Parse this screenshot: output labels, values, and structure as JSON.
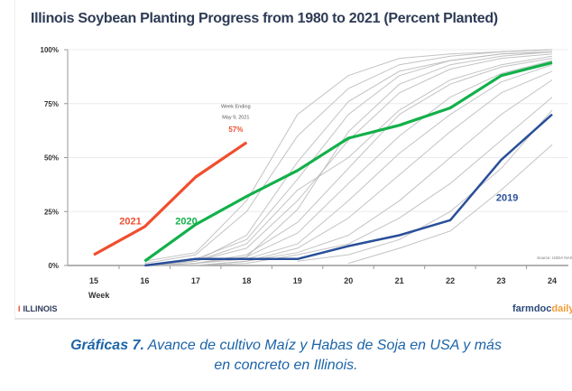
{
  "chart_data": {
    "type": "line",
    "title": "Illinois Soybean Planting Progress from 1980 to 2021 (Percent Planted)",
    "xlabel": "Week",
    "ylabel": "",
    "x": [
      15,
      16,
      17,
      18,
      19,
      20,
      21,
      22,
      23,
      24
    ],
    "xlim": [
      15,
      24
    ],
    "ylim": [
      0,
      100
    ],
    "y_ticks": [
      "0%",
      "25%",
      "50%",
      "75%",
      "100%"
    ],
    "x_ticks": [
      "15",
      "16",
      "17",
      "18",
      "19",
      "20",
      "21",
      "22",
      "23",
      "24"
    ],
    "grid": "horizontal",
    "series": [
      {
        "name": "2021",
        "color": "#f04e2e",
        "x": [
          15,
          16,
          17,
          18
        ],
        "values": [
          5,
          18,
          41,
          57
        ]
      },
      {
        "name": "2020",
        "color": "#12b04a",
        "x": [
          16,
          17,
          18,
          19,
          20,
          21,
          22,
          23,
          24
        ],
        "values": [
          2,
          19,
          32,
          44,
          59,
          65,
          73,
          88,
          94
        ]
      },
      {
        "name": "2019",
        "color": "#2a4f9a",
        "x": [
          16,
          17,
          18,
          19,
          20,
          21,
          22,
          23,
          24
        ],
        "values": [
          0,
          3,
          3,
          3,
          9,
          14,
          21,
          49,
          70
        ]
      }
    ],
    "other_years_color": "#b9b9b9",
    "other_years": [
      [
        [
          16,
          2
        ],
        [
          17,
          6
        ],
        [
          18,
          30
        ],
        [
          19,
          70
        ],
        [
          20,
          88
        ],
        [
          21,
          96
        ],
        [
          22,
          98
        ],
        [
          23,
          99
        ],
        [
          24,
          100
        ]
      ],
      [
        [
          16,
          1
        ],
        [
          17,
          5
        ],
        [
          18,
          25
        ],
        [
          19,
          60
        ],
        [
          20,
          82
        ],
        [
          21,
          93
        ],
        [
          22,
          97
        ],
        [
          23,
          99
        ],
        [
          24,
          100
        ]
      ],
      [
        [
          16,
          0
        ],
        [
          17,
          3
        ],
        [
          18,
          12
        ],
        [
          19,
          40
        ],
        [
          20,
          70
        ],
        [
          21,
          88
        ],
        [
          22,
          95
        ],
        [
          23,
          98
        ],
        [
          24,
          99
        ]
      ],
      [
        [
          16,
          0
        ],
        [
          17,
          2
        ],
        [
          18,
          8
        ],
        [
          19,
          30
        ],
        [
          20,
          58
        ],
        [
          21,
          80
        ],
        [
          22,
          91
        ],
        [
          23,
          96
        ],
        [
          24,
          98
        ]
      ],
      [
        [
          16,
          0
        ],
        [
          17,
          2
        ],
        [
          18,
          10
        ],
        [
          19,
          35
        ],
        [
          20,
          50
        ],
        [
          21,
          72
        ],
        [
          22,
          86
        ],
        [
          23,
          93
        ],
        [
          24,
          97
        ]
      ],
      [
        [
          16,
          0
        ],
        [
          17,
          1
        ],
        [
          18,
          5
        ],
        [
          19,
          20
        ],
        [
          20,
          45
        ],
        [
          21,
          70
        ],
        [
          22,
          84
        ],
        [
          23,
          92
        ],
        [
          24,
          96
        ]
      ],
      [
        [
          16,
          0
        ],
        [
          17,
          1
        ],
        [
          18,
          4
        ],
        [
          19,
          15
        ],
        [
          20,
          38
        ],
        [
          21,
          60
        ],
        [
          22,
          78
        ],
        [
          23,
          89
        ],
        [
          24,
          95
        ]
      ],
      [
        [
          16,
          0
        ],
        [
          17,
          1
        ],
        [
          18,
          3
        ],
        [
          19,
          10
        ],
        [
          20,
          30
        ],
        [
          21,
          52
        ],
        [
          22,
          70
        ],
        [
          23,
          85
        ],
        [
          24,
          93
        ]
      ],
      [
        [
          16,
          0
        ],
        [
          17,
          0
        ],
        [
          18,
          2
        ],
        [
          19,
          8
        ],
        [
          20,
          22
        ],
        [
          21,
          42
        ],
        [
          22,
          62
        ],
        [
          23,
          80
        ],
        [
          24,
          90
        ]
      ],
      [
        [
          16,
          0
        ],
        [
          17,
          0
        ],
        [
          18,
          2
        ],
        [
          19,
          6
        ],
        [
          20,
          14
        ],
        [
          21,
          30
        ],
        [
          22,
          50
        ],
        [
          23,
          70
        ],
        [
          24,
          86
        ]
      ],
      [
        [
          16,
          0
        ],
        [
          17,
          0
        ],
        [
          18,
          1
        ],
        [
          19,
          5
        ],
        [
          20,
          10
        ],
        [
          21,
          22
        ],
        [
          22,
          38
        ],
        [
          23,
          58
        ],
        [
          24,
          78
        ]
      ],
      [
        [
          19,
          2
        ],
        [
          20,
          5
        ],
        [
          21,
          12
        ],
        [
          22,
          25
        ],
        [
          23,
          45
        ],
        [
          24,
          72
        ]
      ],
      [
        [
          20,
          1
        ],
        [
          21,
          8
        ],
        [
          22,
          16
        ],
        [
          23,
          35
        ],
        [
          24,
          56
        ]
      ],
      [
        [
          17,
          2
        ],
        [
          18,
          14
        ],
        [
          19,
          48
        ],
        [
          20,
          76
        ],
        [
          21,
          90
        ],
        [
          22,
          95
        ],
        [
          23,
          98
        ],
        [
          24,
          99
        ]
      ],
      [
        [
          18,
          4
        ],
        [
          19,
          26
        ],
        [
          20,
          62
        ],
        [
          21,
          84
        ],
        [
          22,
          93
        ],
        [
          23,
          97
        ],
        [
          24,
          99
        ]
      ]
    ],
    "annotations": [
      {
        "text": "Week Ending",
        "x": 18,
        "y": 73
      },
      {
        "text": "May 9, 2021",
        "x": 18,
        "y": 68
      },
      {
        "text": "57%",
        "x": 18,
        "y": 62
      },
      {
        "text": "2021",
        "x": 15.5,
        "y": 19
      },
      {
        "text": "2020",
        "x": 16.6,
        "y": 19
      },
      {
        "text": "2019",
        "x": 22.9,
        "y": 30
      },
      {
        "text": "Source: USDA NASS",
        "x": 23.7,
        "y": 3
      }
    ]
  },
  "logos": {
    "illinois": "ILLINOIS",
    "illinois_mark": "I",
    "farmdoc": "farmdoc",
    "farmdoc_suffix": "daily"
  },
  "caption": {
    "bold": "Gráficas 7.",
    "text": " Avance de cultivo Maíz y Habas de Soja en USA y más",
    "line2": "en concreto en Illinois."
  }
}
